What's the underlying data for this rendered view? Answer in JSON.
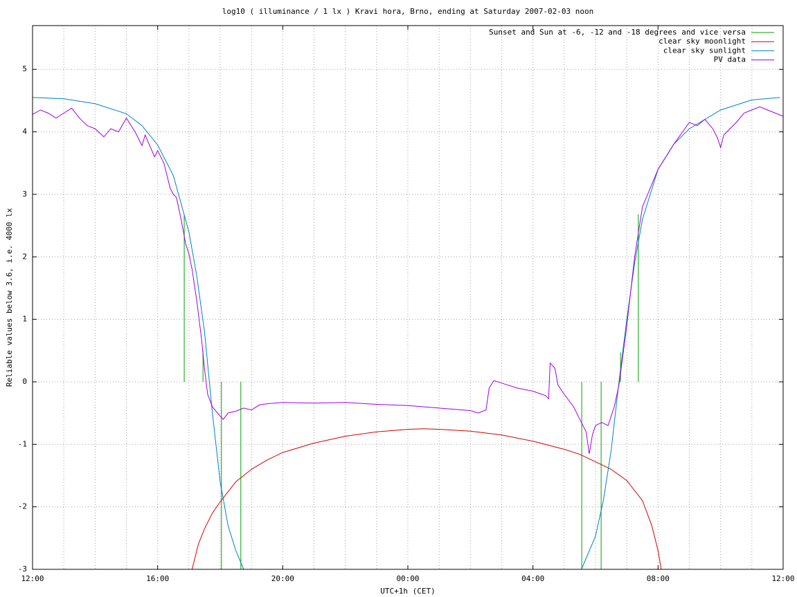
{
  "chart_data": {
    "type": "line",
    "title": "log10 ( illuminance / 1 lx ) Kravi hora, Brno, ending at Saturday 2007-02-03 noon",
    "xlabel": "UTC+1h (CET)",
    "ylabel": "Reliable values below 3.6, i.e. 4000 lx",
    "xlim": [
      0,
      24
    ],
    "ylim": [
      -3,
      5.7
    ],
    "xticks": [
      {
        "value": 0,
        "label": "12:00"
      },
      {
        "value": 4,
        "label": "16:00"
      },
      {
        "value": 8,
        "label": "20:00"
      },
      {
        "value": 12,
        "label": "00:00"
      },
      {
        "value": 16,
        "label": "04:00"
      },
      {
        "value": 20,
        "label": "08:00"
      },
      {
        "value": 24,
        "label": "12:00"
      }
    ],
    "xgrid_minor": [
      1,
      2,
      3,
      5,
      6,
      7,
      9,
      10,
      11,
      13,
      14,
      15,
      17,
      18,
      19,
      21,
      22,
      23
    ],
    "yticks": [
      -3,
      -2,
      -1,
      0,
      1,
      2,
      3,
      4,
      5
    ],
    "grid": true,
    "legend": "top-right",
    "series": [
      {
        "name": "Sunset and Sun at -6, -12 and -18 degrees and vice versa",
        "color": "#00a000",
        "style": "segments",
        "x": [
          4.85,
          5.45,
          6.04,
          6.66,
          17.56,
          18.18,
          18.8,
          19.37
        ],
        "values": [
          [
            0,
            2.68
          ],
          [
            0,
            0.5
          ],
          [
            0,
            -3
          ],
          [
            0,
            -3
          ],
          [
            0,
            -3
          ],
          [
            0,
            -3
          ],
          [
            0,
            0.47
          ],
          [
            0,
            2.68
          ]
        ]
      },
      {
        "name": "clear sky moonlight",
        "color": "#d00000",
        "style": "line",
        "x": [
          5.1,
          5.3,
          5.5,
          5.75,
          6,
          6.5,
          7,
          7.5,
          8,
          9,
          10,
          11,
          12,
          12.5,
          13,
          14,
          15,
          16,
          17,
          17.5,
          18,
          18.5,
          19,
          19.5,
          19.8,
          20,
          20.1
        ],
        "values": [
          -3,
          -2.6,
          -2.35,
          -2.1,
          -1.92,
          -1.6,
          -1.4,
          -1.25,
          -1.13,
          -0.98,
          -0.87,
          -0.8,
          -0.76,
          -0.75,
          -0.76,
          -0.79,
          -0.85,
          -0.95,
          -1.08,
          -1.16,
          -1.28,
          -1.4,
          -1.58,
          -1.9,
          -2.3,
          -2.7,
          -3
        ]
      },
      {
        "name": "clear sky sunlight",
        "color": "#0080c0",
        "style": "line",
        "x": [
          0,
          1,
          2,
          3,
          3.5,
          4,
          4.5,
          5,
          5.25,
          5.5,
          5.75,
          6,
          6.25,
          6.5,
          6.75,
          12,
          17.55,
          18,
          18.25,
          18.5,
          18.75,
          19,
          19.25,
          19.5,
          20,
          20.5,
          21,
          22,
          23,
          23.9
        ],
        "values": [
          4.55,
          4.53,
          4.45,
          4.29,
          4.1,
          3.79,
          3.3,
          2.4,
          1.7,
          0.8,
          -0.5,
          -1.6,
          -2.3,
          -2.7,
          -3,
          null,
          -3,
          -2.47,
          -1.9,
          -1.1,
          0,
          1.0,
          1.9,
          2.6,
          3.4,
          3.8,
          4.05,
          4.35,
          4.51,
          4.55
        ]
      },
      {
        "name": "PV data",
        "color": "#a000e0",
        "style": "line",
        "x": [
          0,
          0.25,
          0.5,
          0.75,
          1,
          1.25,
          1.5,
          1.75,
          2,
          2.28,
          2.5,
          2.75,
          3,
          3.28,
          3.5,
          3.6,
          3.8,
          3.9,
          4,
          4.2,
          4.4,
          4.5,
          4.6,
          4.75,
          4.9,
          5,
          5.1,
          5.25,
          5.4,
          5.5,
          5.6,
          5.75,
          6,
          6.1,
          6.25,
          6.5,
          6.75,
          7,
          7.25,
          7.5,
          8,
          9,
          10,
          11,
          12,
          13,
          14,
          14.25,
          14.5,
          14.6,
          14.75,
          15,
          15.5,
          16,
          16.4,
          16.5,
          16.55,
          16.7,
          16.8,
          17,
          17.3,
          17.5,
          17.7,
          17.8,
          17.9,
          18,
          18.2,
          18.4,
          18.6,
          18.75,
          19,
          19.25,
          19.5,
          20,
          20.5,
          21,
          21.25,
          21.5,
          21.75,
          21.9,
          22,
          22.1,
          22.3,
          22.5,
          22.75,
          23,
          23.25,
          23.5,
          23.75,
          24
        ],
        "values": [
          4.28,
          4.35,
          4.3,
          4.22,
          4.3,
          4.38,
          4.22,
          4.1,
          4.05,
          3.92,
          4.05,
          4.0,
          4.22,
          4.0,
          3.78,
          3.95,
          3.72,
          3.6,
          3.7,
          3.5,
          3.1,
          3.0,
          2.95,
          2.6,
          2.2,
          2.05,
          1.8,
          1.3,
          0.7,
          0.2,
          -0.2,
          -0.4,
          -0.55,
          -0.6,
          -0.5,
          -0.47,
          -0.42,
          -0.45,
          -0.37,
          -0.35,
          -0.33,
          -0.34,
          -0.33,
          -0.36,
          -0.38,
          -0.42,
          -0.46,
          -0.5,
          -0.45,
          -0.1,
          0.02,
          -0.02,
          -0.1,
          -0.15,
          -0.22,
          -0.27,
          0.3,
          0.22,
          -0.05,
          -0.2,
          -0.4,
          -0.6,
          -0.8,
          -1.15,
          -0.85,
          -0.7,
          -0.65,
          -0.7,
          -0.4,
          -0.05,
          0.9,
          2.0,
          2.8,
          3.4,
          3.8,
          4.15,
          4.1,
          4.2,
          4.05,
          3.9,
          3.75,
          3.95,
          4.05,
          4.15,
          4.3,
          4.35,
          4.4,
          4.35,
          4.3,
          4.25
        ]
      }
    ]
  }
}
